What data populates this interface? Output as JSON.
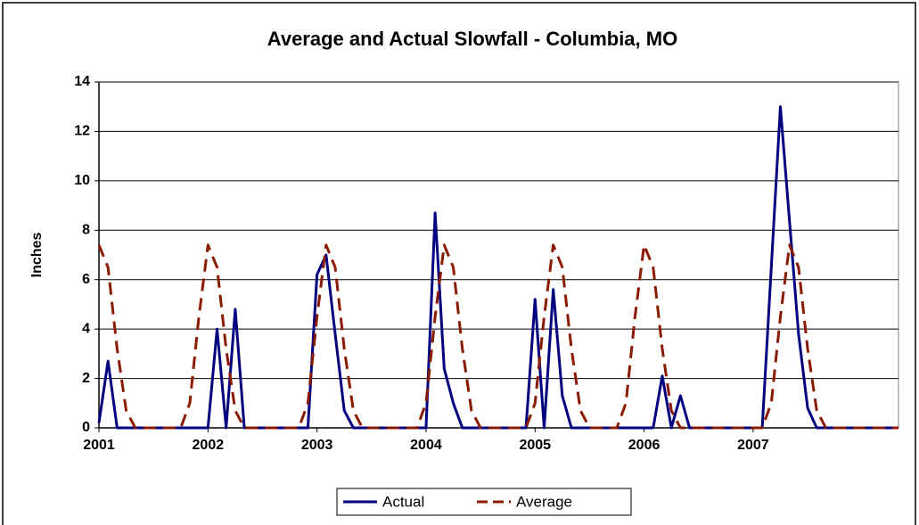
{
  "chart_data": {
    "type": "line",
    "title": "Average and Actual Slowfall - Columbia, MO",
    "y_label": "Inches",
    "categories": [
      "2001",
      null,
      null,
      null,
      null,
      null,
      null,
      null,
      null,
      null,
      null,
      null,
      "2002",
      null,
      null,
      null,
      null,
      null,
      null,
      null,
      null,
      null,
      null,
      null,
      "2003",
      null,
      null,
      null,
      null,
      null,
      null,
      null,
      null,
      null,
      null,
      null,
      "2004",
      null,
      null,
      null,
      null,
      null,
      null,
      null,
      null,
      null,
      null,
      null,
      "2005",
      null,
      null,
      null,
      null,
      null,
      null,
      null,
      null,
      null,
      null,
      null,
      "2006",
      null,
      null,
      null,
      null,
      null,
      null,
      null,
      null,
      null,
      null,
      null,
      "2007",
      null,
      null,
      null,
      null,
      null,
      null,
      null,
      null,
      null,
      null,
      null,
      null,
      null,
      null,
      null,
      null
    ],
    "series": [
      {
        "name": "Actual",
        "color": "#000080",
        "dash": "solid",
        "values": [
          0.2,
          2.7,
          0,
          0,
          0,
          0,
          0,
          0,
          0,
          0,
          0,
          0,
          0,
          4.0,
          0,
          4.8,
          0,
          0,
          0,
          0,
          0,
          0,
          0,
          0,
          6.2,
          7.0,
          3.8,
          0.7,
          0,
          0,
          0,
          0,
          0,
          0,
          0,
          0,
          0,
          8.7,
          2.4,
          1.0,
          0,
          0,
          0,
          0,
          0,
          0,
          0,
          0,
          5.2,
          0,
          5.6,
          1.3,
          0,
          0,
          0,
          0,
          0,
          0,
          0,
          0,
          0,
          0,
          2.1,
          0,
          1.3,
          0,
          0,
          0,
          0,
          0,
          0,
          0,
          0,
          0,
          6.5,
          13.0,
          8.4,
          3.8,
          0.8,
          0,
          0,
          0,
          0,
          0,
          0,
          0,
          0,
          0,
          0
        ]
      },
      {
        "name": "Average",
        "color": "#8b1a00",
        "dash": "dashed",
        "values": [
          7.4,
          6.5,
          3.2,
          0.7,
          0,
          0,
          0,
          0,
          0,
          0,
          1.0,
          4.5,
          7.4,
          6.5,
          3.2,
          0.7,
          0,
          0,
          0,
          0,
          0,
          0,
          0,
          1.0,
          4.5,
          7.4,
          6.5,
          3.2,
          0.7,
          0,
          0,
          0,
          0,
          0,
          0,
          0,
          1.0,
          4.5,
          7.4,
          6.5,
          3.2,
          0.7,
          0,
          0,
          0,
          0,
          0,
          0,
          1.0,
          4.5,
          7.4,
          6.5,
          3.2,
          0.7,
          0,
          0,
          0,
          0,
          1.0,
          4.5,
          7.4,
          6.5,
          3.2,
          0.7,
          0,
          0,
          0,
          0,
          0,
          0,
          0,
          0,
          0,
          0,
          1.0,
          4.5,
          7.4,
          6.5,
          3.2,
          0.7,
          0,
          0,
          0,
          0,
          0,
          0,
          0,
          0,
          0
        ]
      }
    ],
    "ylim": [
      0,
      14
    ],
    "yticks": [
      0,
      2,
      4,
      6,
      8,
      10,
      12,
      14
    ],
    "grid": true,
    "legend": "bottom"
  }
}
